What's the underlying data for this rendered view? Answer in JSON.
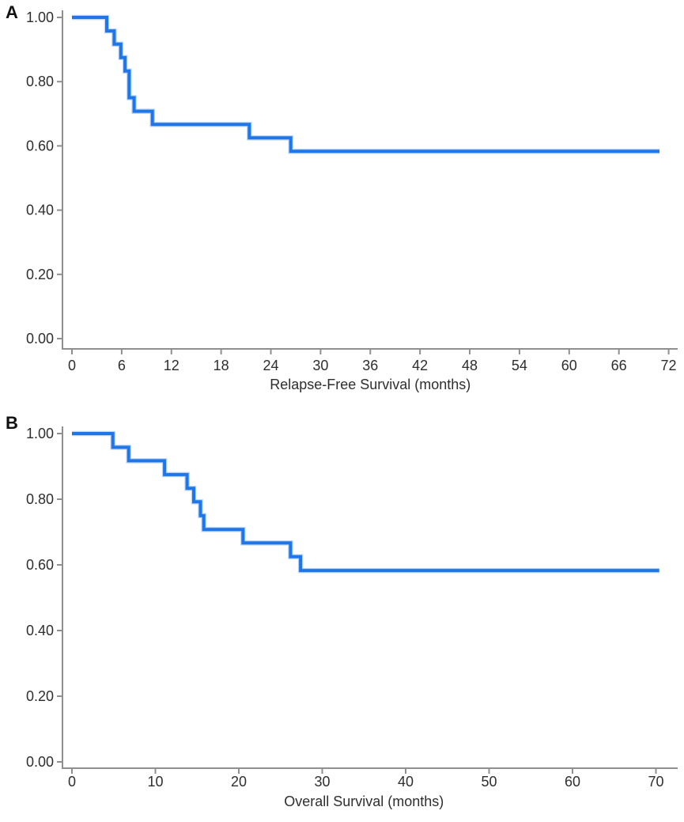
{
  "figure": {
    "background": "#ffffff",
    "panels": [
      {
        "label": "A"
      },
      {
        "label": "B"
      }
    ]
  },
  "chart_data": [
    {
      "type": "line",
      "subtype": "kaplan_meier_step",
      "panel_label": "A",
      "title": "",
      "xlabel": "Relapse-Free Survival (months)",
      "ylabel": "",
      "xlim": [
        0,
        73
      ],
      "ylim": [
        0.0,
        1.0
      ],
      "xticks": [
        0,
        6,
        12,
        18,
        24,
        30,
        36,
        42,
        48,
        54,
        60,
        66,
        72
      ],
      "yticks": [
        1.0,
        0.8,
        0.6,
        0.4,
        0.2,
        0.0
      ],
      "ytick_labels": [
        "1.00",
        "0.80",
        "0.60",
        "0.40",
        "0.20",
        "0.00"
      ],
      "grid": false,
      "legend": false,
      "line_color": "#1e76e8",
      "axis_color": "#8f8f8f",
      "series": [
        {
          "name": "Relapse-free survival",
          "start": {
            "time": 0,
            "survival": 1.0
          },
          "event_times_months": [
            4.2,
            5.1,
            5.9,
            6.4,
            6.9,
            7.5,
            9.7,
            21.4,
            26.4
          ],
          "survival_after_event": [
            0.958,
            0.917,
            0.875,
            0.833,
            0.75,
            0.708,
            0.667,
            0.625,
            0.583
          ],
          "end_time_months": 70.9
        }
      ]
    },
    {
      "type": "line",
      "subtype": "kaplan_meier_step",
      "panel_label": "B",
      "title": "",
      "xlabel": "Overall Survival (months)",
      "ylabel": "",
      "xlim": [
        0,
        72.6
      ],
      "ylim": [
        0.0,
        1.0
      ],
      "xticks": [
        0,
        10,
        20,
        30,
        40,
        50,
        60,
        70
      ],
      "yticks": [
        1.0,
        0.8,
        0.6,
        0.4,
        0.2,
        0.0
      ],
      "ytick_labels": [
        "1.00",
        "0.80",
        "0.60",
        "0.40",
        "0.20",
        "0.00"
      ],
      "grid": false,
      "legend": false,
      "line_color": "#1e76e8",
      "axis_color": "#8f8f8f",
      "series": [
        {
          "name": "Overall survival",
          "start": {
            "time": 0,
            "survival": 1.0
          },
          "event_times_months": [
            4.9,
            6.8,
            11.1,
            13.8,
            14.6,
            15.4,
            15.8,
            20.5,
            26.2,
            27.4
          ],
          "survival_after_event": [
            0.958,
            0.917,
            0.875,
            0.833,
            0.792,
            0.75,
            0.708,
            0.667,
            0.625,
            0.583
          ],
          "end_time_months": 70.4
        }
      ]
    }
  ]
}
